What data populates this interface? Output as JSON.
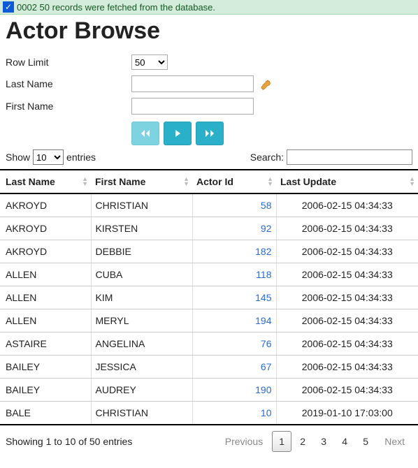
{
  "status": {
    "code": "0002",
    "message": "50 records were fetched from the database."
  },
  "page": {
    "title": "Actor Browse"
  },
  "form": {
    "row_limit": {
      "label": "Row Limit",
      "value": "50",
      "options": [
        "50"
      ]
    },
    "last_name": {
      "label": "Last Name",
      "value": ""
    },
    "first_name": {
      "label": "First Name",
      "value": ""
    }
  },
  "nav_buttons": {
    "first": "◄◄",
    "prev": "►",
    "next": "►►"
  },
  "datatable": {
    "show_prefix": "Show",
    "show_value": "10",
    "show_suffix": "entries",
    "search_label": "Search:",
    "search_value": "",
    "columns": [
      "Last Name",
      "First Name",
      "Actor Id",
      "Last Update"
    ],
    "rows": [
      {
        "last": "AKROYD",
        "first": "CHRISTIAN",
        "id": "58",
        "update": "2006-02-15 04:34:33"
      },
      {
        "last": "AKROYD",
        "first": "KIRSTEN",
        "id": "92",
        "update": "2006-02-15 04:34:33"
      },
      {
        "last": "AKROYD",
        "first": "DEBBIE",
        "id": "182",
        "update": "2006-02-15 04:34:33"
      },
      {
        "last": "ALLEN",
        "first": "CUBA",
        "id": "118",
        "update": "2006-02-15 04:34:33"
      },
      {
        "last": "ALLEN",
        "first": "KIM",
        "id": "145",
        "update": "2006-02-15 04:34:33"
      },
      {
        "last": "ALLEN",
        "first": "MERYL",
        "id": "194",
        "update": "2006-02-15 04:34:33"
      },
      {
        "last": "ASTAIRE",
        "first": "ANGELINA",
        "id": "76",
        "update": "2006-02-15 04:34:33"
      },
      {
        "last": "BAILEY",
        "first": "JESSICA",
        "id": "67",
        "update": "2006-02-15 04:34:33"
      },
      {
        "last": "BAILEY",
        "first": "AUDREY",
        "id": "190",
        "update": "2006-02-15 04:34:33"
      },
      {
        "last": "BALE",
        "first": "CHRISTIAN",
        "id": "10",
        "update": "2019-01-10 17:03:00"
      }
    ],
    "info": "Showing 1 to 10 of 50 entries",
    "pager": {
      "previous": "Previous",
      "pages": [
        "1",
        "2",
        "3",
        "4",
        "5"
      ],
      "active": "1",
      "next": "Next"
    }
  },
  "colors": {
    "status_bg": "#d4edda",
    "status_text": "#155724",
    "link": "#2a6bd1",
    "btn": "#2ab0c9",
    "btn_light": "#7ed3e0"
  }
}
